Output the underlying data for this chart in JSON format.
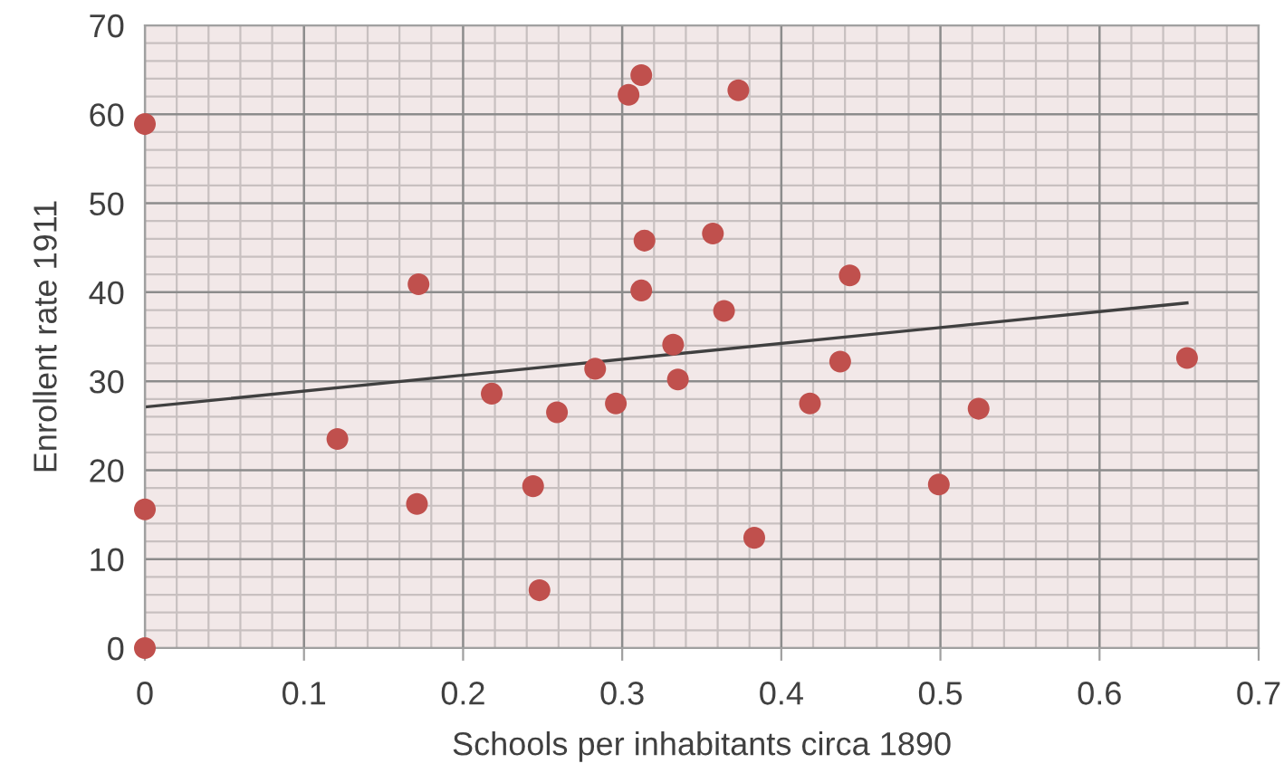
{
  "chart_data": {
    "type": "scatter",
    "xlabel": "Schools per inhabitants circa 1890",
    "ylabel": "Enrollent rate 1911",
    "series": [
      {
        "color": "#c0504d",
        "marker": "circle",
        "x": [
          0,
          0,
          0,
          0.121,
          0.172,
          0.171,
          0.218,
          0.244,
          0.248,
          0.259,
          0.283,
          0.296,
          0.304,
          0.312,
          0.314,
          0.312,
          0.332,
          0.335,
          0.373,
          0.357,
          0.364,
          0.443,
          0.437,
          0.418,
          0.383,
          0.499,
          0.524,
          0.655
        ],
        "values": [
          58.9,
          15.6,
          0,
          23.5,
          40.9,
          16.2,
          28.6,
          18.2,
          6.5,
          26.5,
          31.4,
          27.5,
          62.2,
          64.4,
          45.8,
          40.2,
          34.1,
          30.2,
          62.7,
          46.6,
          37.9,
          41.9,
          32.2,
          27.5,
          12.4,
          18.4,
          26.9,
          32.6
        ]
      },
      {
        "type": "line",
        "color": "#404040",
        "marker": "none",
        "x": [
          0,
          0.655
        ],
        "values": [
          27.1,
          38.8
        ]
      }
    ],
    "xlim": [
      0,
      0.7
    ],
    "xticks": [
      0,
      0.1,
      0.2,
      0.3,
      0.4,
      0.5,
      0.6,
      0.7
    ],
    "ylim": [
      0,
      70
    ],
    "yticks": [
      0,
      10,
      20,
      30,
      40,
      50,
      60,
      70
    ],
    "grid": true,
    "legend": false
  }
}
